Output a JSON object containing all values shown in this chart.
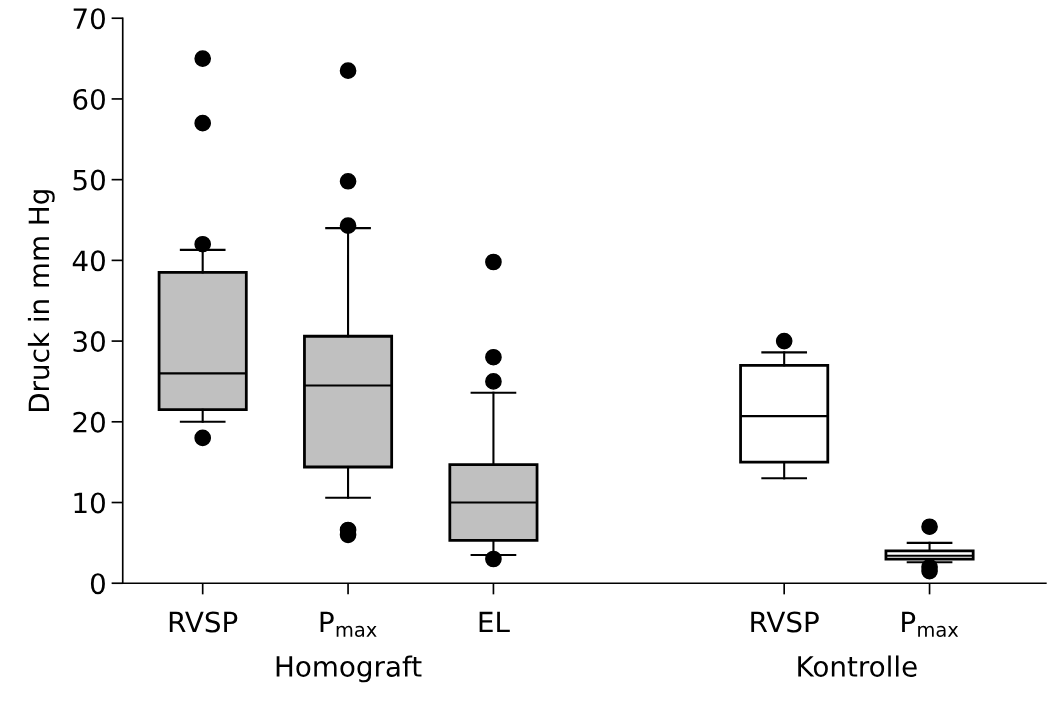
{
  "chart_data": {
    "type": "box",
    "ylabel": "Druck in mm Hg",
    "categories": [
      "RVSP",
      "P$_{max}$",
      "EL",
      null,
      "RVSP",
      "P$_{max}$"
    ],
    "boxes": [
      {
        "low": 20,
        "q1": 21.5,
        "median": 26,
        "q3": 38.5,
        "high": 41.3,
        "outliers": [
          65,
          57,
          42,
          18
        ]
      },
      {
        "low": 10.6,
        "q1": 14.4,
        "median": 24.5,
        "q3": 30.6,
        "high": 44,
        "outliers": [
          63.5,
          49.8,
          44.3,
          6.6,
          6
        ]
      },
      {
        "low": 3.5,
        "q1": 5.3,
        "median": 10,
        "q3": 14.7,
        "high": 23.6,
        "outliers": [
          39.8,
          28,
          25,
          3
        ]
      },
      null,
      {
        "low": 13,
        "q1": 15,
        "median": 20.7,
        "q3": 27,
        "high": 28.6,
        "outliers": [
          30
        ]
      },
      {
        "low": 2.6,
        "q1": 3,
        "median": 3.4,
        "q3": 4,
        "high": 5,
        "outliers": [
          7,
          2,
          1.5
        ]
      }
    ],
    "colors": [
      "#c0c0c0",
      "#c0c0c0",
      "#c0c0c0",
      null,
      "#ffffff",
      "#ffffff"
    ],
    "ylim": [
      0,
      70
    ],
    "yticks": [
      0,
      10,
      20,
      30,
      40,
      50,
      60,
      70
    ],
    "annotations": [
      "Homograft",
      "Kontrolle"
    ],
    "grid": false,
    "legend": false
  }
}
